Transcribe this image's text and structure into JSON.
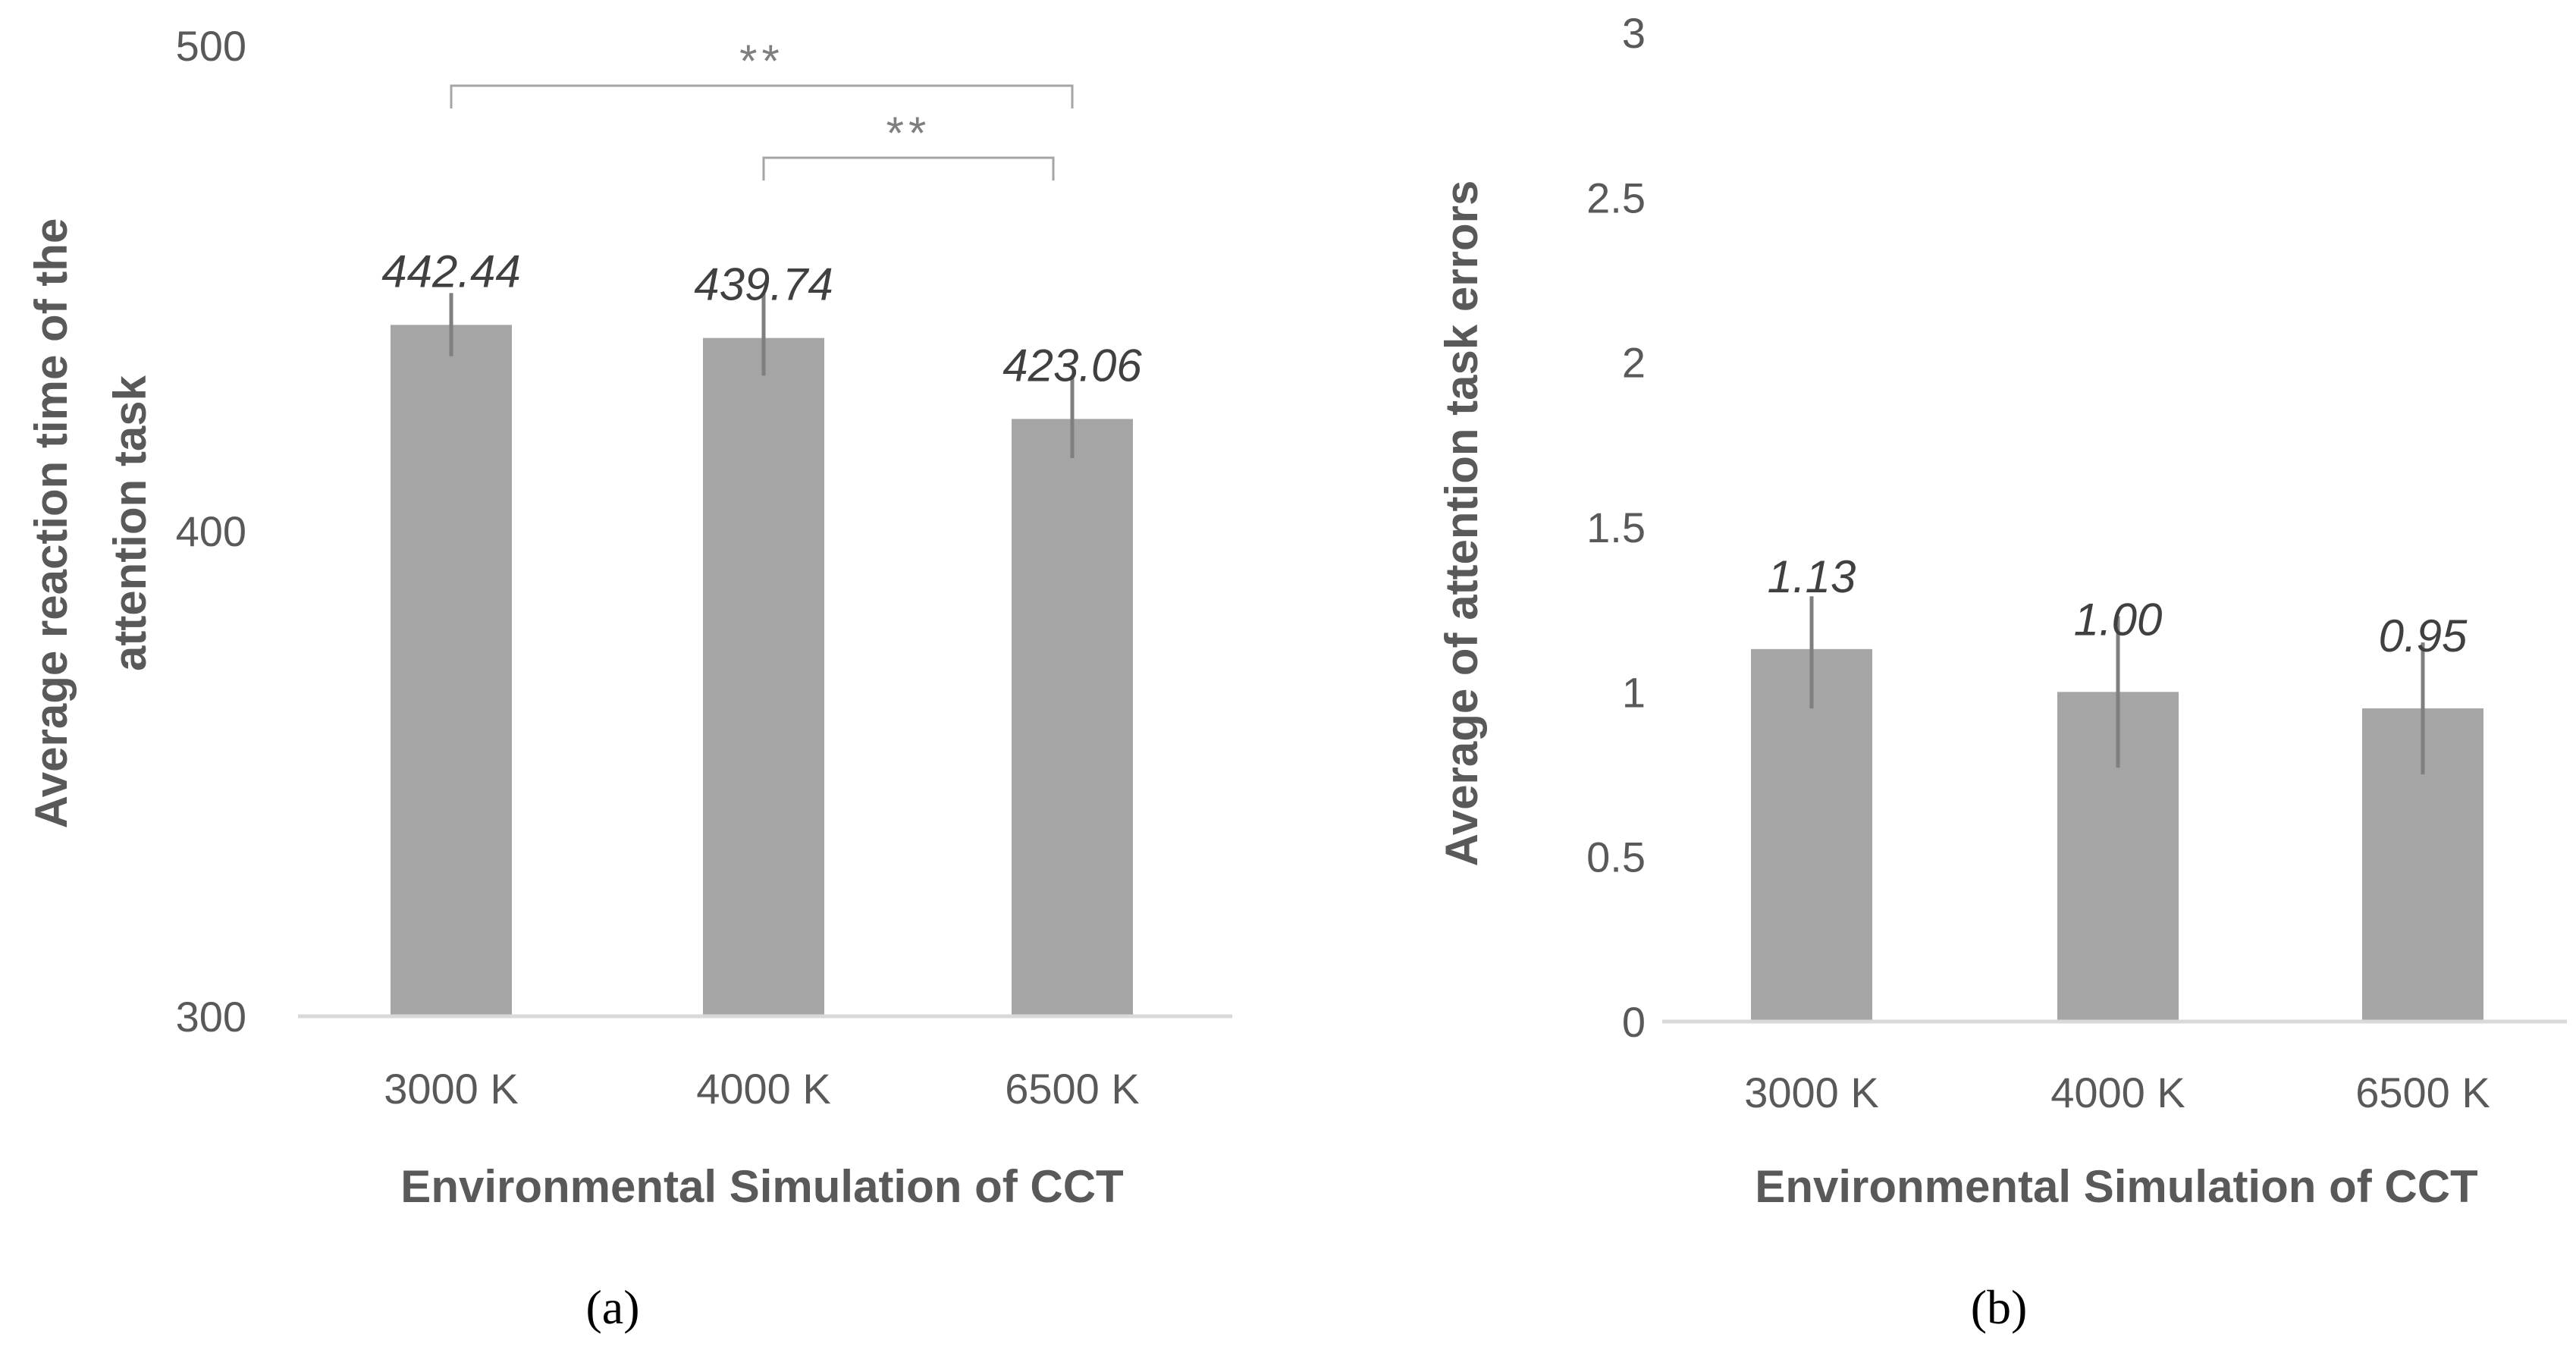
{
  "figure": {
    "panel_a_label": "(a)",
    "panel_b_label": "(b)"
  },
  "chart_data": [
    {
      "type": "bar",
      "panel": "a",
      "categories": [
        "3000 K",
        "4000 K",
        "6500 K"
      ],
      "values": [
        442.44,
        439.74,
        423.06
      ],
      "data_labels": [
        "442.44",
        "439.74",
        "423.06"
      ],
      "error_bars": [
        [
          436,
          449
        ],
        [
          432,
          449
        ],
        [
          415,
          432
        ]
      ],
      "xlabel": "Environmental Simulation of CCT",
      "ylabel": "Average reaction time of the attention task",
      "ylabel_lines": [
        "Average reaction time of the",
        "attention task"
      ],
      "ylim": [
        300,
        500
      ],
      "yticks": [
        300,
        400,
        500
      ],
      "ytick_labels": [
        "300",
        "400",
        "500"
      ],
      "significance": [
        {
          "from": "3000 K",
          "to": "6500 K",
          "label": "**"
        },
        {
          "from": "4000 K",
          "to": "6500 K",
          "label": "**"
        }
      ]
    },
    {
      "type": "bar",
      "panel": "b",
      "categories": [
        "3000 K",
        "4000 K",
        "6500 K"
      ],
      "values": [
        1.13,
        1.0,
        0.95
      ],
      "data_labels": [
        "1.13",
        "1.00",
        "0.95"
      ],
      "error_bars": [
        [
          0.95,
          1.29
        ],
        [
          0.77,
          1.23
        ],
        [
          0.75,
          1.15
        ]
      ],
      "xlabel": "Environmental Simulation of CCT",
      "ylabel": "Average of attention task errors",
      "ylim": [
        0,
        3
      ],
      "yticks": [
        0,
        0.5,
        1,
        1.5,
        2,
        2.5,
        3
      ],
      "ytick_labels": [
        "0",
        "0.5",
        "1",
        "1.5",
        "2",
        "2.5",
        "3"
      ]
    }
  ]
}
